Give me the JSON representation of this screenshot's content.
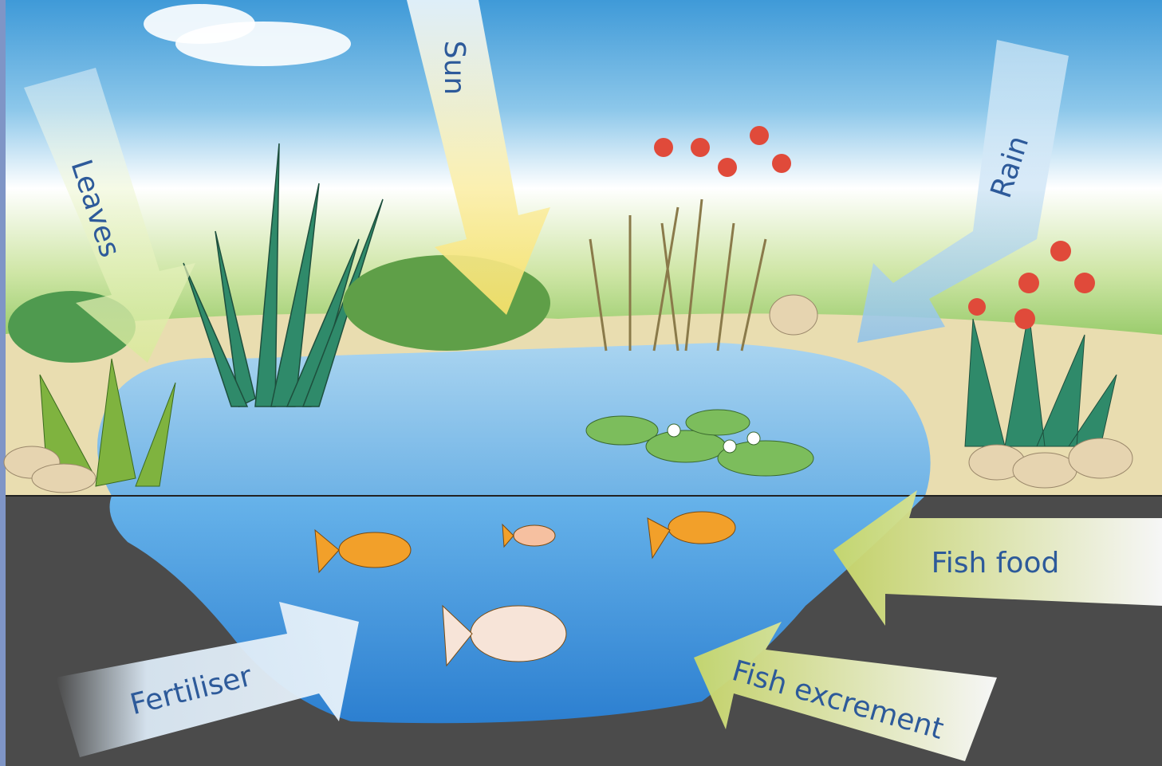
{
  "arrows": [
    {
      "label": "Sun"
    },
    {
      "label": "Leaves"
    },
    {
      "label": "Rain"
    },
    {
      "label": "Fish food"
    },
    {
      "label": "Fish excrement"
    },
    {
      "label": "Fertiliser"
    }
  ]
}
